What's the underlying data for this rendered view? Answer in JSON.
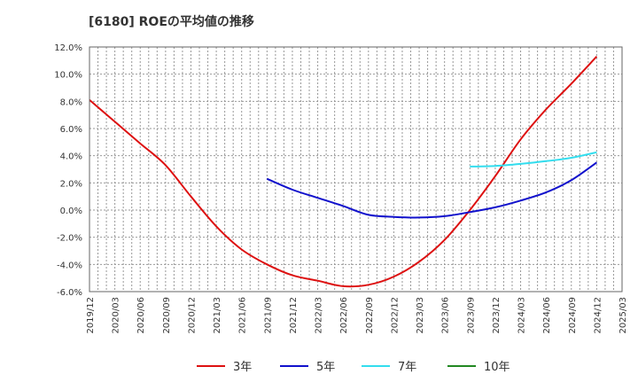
{
  "chart_data": {
    "type": "line",
    "title": "[6180]  ROEの平均値の推移",
    "xlabel": "",
    "ylabel": "",
    "ylim": [
      -6.0,
      12.0
    ],
    "yticks": [
      12.0,
      10.0,
      8.0,
      6.0,
      4.0,
      2.0,
      0.0,
      -2.0,
      -4.0,
      -6.0
    ],
    "ytick_labels": [
      "12.0%",
      "10.0%",
      "8.0%",
      "6.0%",
      "4.0%",
      "2.0%",
      "0.0%",
      "-2.0%",
      "-4.0%",
      "-6.0%"
    ],
    "x_start_month": 0,
    "x_end_month": 63,
    "xtick_labels": [
      "2019/12",
      "2020/03",
      "2020/06",
      "2020/09",
      "2020/12",
      "2021/03",
      "2021/06",
      "2021/09",
      "2021/12",
      "2022/03",
      "2022/06",
      "2022/09",
      "2022/12",
      "2023/03",
      "2023/06",
      "2023/09",
      "2023/12",
      "2024/03",
      "2024/06",
      "2024/09",
      "2024/12",
      "2025/03"
    ],
    "grid": true,
    "legend_position": "bottom",
    "series": [
      {
        "name": "3年",
        "color": "#dd1111",
        "months": [
          0,
          3,
          6,
          9,
          12,
          15,
          18,
          21,
          24,
          27,
          30,
          33,
          36,
          39,
          42,
          45,
          48,
          51,
          54,
          57,
          60
        ],
        "values": [
          8.1,
          6.5,
          4.9,
          3.3,
          1.0,
          -1.2,
          -2.9,
          -4.0,
          -4.8,
          -5.2,
          -5.6,
          -5.5,
          -4.9,
          -3.8,
          -2.2,
          0.0,
          2.5,
          5.2,
          7.4,
          9.3,
          11.3
        ]
      },
      {
        "name": "5年",
        "color": "#1111cc",
        "months": [
          21,
          24,
          27,
          30,
          33,
          36,
          39,
          42,
          45,
          48,
          51,
          54,
          57,
          60
        ],
        "values": [
          2.3,
          1.5,
          0.9,
          0.3,
          -0.35,
          -0.5,
          -0.55,
          -0.45,
          -0.15,
          0.2,
          0.7,
          1.3,
          2.2,
          3.5
        ]
      },
      {
        "name": "7年",
        "color": "#33ddee",
        "months": [
          45,
          48,
          51,
          54,
          57,
          60
        ],
        "values": [
          3.2,
          3.25,
          3.4,
          3.6,
          3.85,
          4.25
        ]
      },
      {
        "name": "10年",
        "color": "#228822",
        "months": [],
        "values": []
      }
    ]
  }
}
